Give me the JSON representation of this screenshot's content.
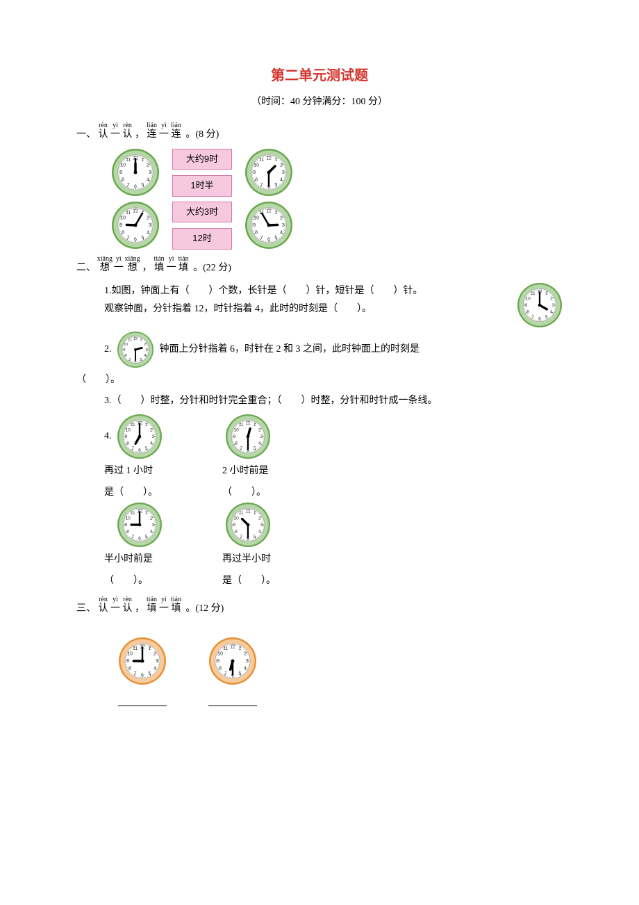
{
  "title": "第二单元测试题",
  "subtitle": "（时间：40 分钟满分：100 分）",
  "clock_style": {
    "green": {
      "outer": "#6aa84f",
      "ring": "#b6d7a8",
      "face": "#ffffff"
    },
    "orange": {
      "outer": "#e69138",
      "ring": "#f9cb9c",
      "face": "#ffffff"
    }
  },
  "section1": {
    "heading_prefix": "一、",
    "ruby": [
      {
        "han": "认",
        "py": "rèn"
      },
      {
        "han": "一",
        "py": "yì"
      },
      {
        "han": "认",
        "py": "rèn"
      },
      {
        "han": "连",
        "py": "lián"
      },
      {
        "han": "一",
        "py": "yì"
      },
      {
        "han": "连",
        "py": "lián"
      }
    ],
    "points": "。(8 分)",
    "labels": [
      "大约9时",
      "1时半",
      "大约3时",
      "12时"
    ],
    "clocks": [
      {
        "hour": 12,
        "minute": 0,
        "color": "green"
      },
      {
        "hour": 1,
        "minute": 30,
        "color": "green"
      },
      {
        "hour": 9,
        "minute": 5,
        "color": "green"
      },
      {
        "hour": 2,
        "minute": 55,
        "color": "green"
      }
    ]
  },
  "section2": {
    "heading_prefix": "二、",
    "ruby": [
      {
        "han": "想",
        "py": "xiǎng"
      },
      {
        "han": "一",
        "py": "yì"
      },
      {
        "han": "想",
        "py": "xiǎng"
      },
      {
        "han": "填",
        "py": "tián"
      },
      {
        "han": "一",
        "py": "yì"
      },
      {
        "han": "填",
        "py": "tián"
      }
    ],
    "points": "。(22 分)",
    "q1_text_a": "1.如图，钟面上有（　　）个数，长针是（　　）针，短针是（　　）针。",
    "q1_text_b": "观察钟面，分针指着 12，时针指着 4，此时的时刻是（　　）。",
    "q1_clock": {
      "hour": 4,
      "minute": 0,
      "color": "green"
    },
    "q2_prefix": "2.",
    "q2_clock": {
      "hour": 2,
      "minute": 30,
      "color": "green"
    },
    "q2_text_a": "钟面上分针指着 6，时针在 2 和 3 之间，此时钟面上的时刻是",
    "q2_text_b": "（　　）。",
    "q3_text": "3.（　　）时整，分针和时针完全重合；（　　）时整，分针和时针成一条线。",
    "q4_label": "4.",
    "q4": [
      {
        "clock": {
          "hour": 7,
          "minute": 0,
          "color": "green"
        },
        "line1": "再过 1 小时",
        "line2": "是（　　）。"
      },
      {
        "clock": {
          "hour": 12,
          "minute": 30,
          "color": "green"
        },
        "line1": "2 小时前是",
        "line2": "（　　）。"
      },
      {
        "clock": {
          "hour": 9,
          "minute": 0,
          "color": "green"
        },
        "line1": "半小时前是",
        "line2": "（　　）。"
      },
      {
        "clock": {
          "hour": 10,
          "minute": 30,
          "color": "green"
        },
        "line1": "再过半小时",
        "line2": "是（　　）。"
      }
    ]
  },
  "section3": {
    "heading_prefix": "三、",
    "ruby": [
      {
        "han": "认",
        "py": "rèn"
      },
      {
        "han": "一",
        "py": "yì"
      },
      {
        "han": "认",
        "py": "rèn"
      },
      {
        "han": "填",
        "py": "tián"
      },
      {
        "han": "一",
        "py": "yì"
      },
      {
        "han": "填",
        "py": "tián"
      }
    ],
    "points": "。(12 分)",
    "clocks": [
      {
        "hour": 9,
        "minute": 0,
        "color": "orange"
      },
      {
        "hour": 6,
        "minute": 30,
        "color": "orange"
      }
    ]
  }
}
